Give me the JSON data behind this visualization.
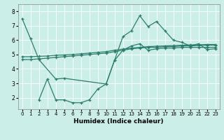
{
  "xlabel": "Humidex (Indice chaleur)",
  "background_color": "#cceee8",
  "line_color": "#2d7d6e",
  "xlim": [
    -0.5,
    23.5
  ],
  "ylim": [
    1.2,
    8.5
  ],
  "yticks": [
    2,
    3,
    4,
    5,
    6,
    7,
    8
  ],
  "xticks": [
    0,
    1,
    2,
    3,
    4,
    5,
    6,
    7,
    8,
    9,
    10,
    11,
    12,
    13,
    14,
    15,
    16,
    17,
    18,
    19,
    20,
    21,
    22,
    23
  ],
  "lines": [
    {
      "x": [
        0,
        1,
        2,
        4,
        5,
        10,
        11,
        12,
        13,
        14,
        15,
        16,
        17,
        18,
        19,
        20,
        21,
        22,
        23
      ],
      "y": [
        7.5,
        6.1,
        4.65,
        3.3,
        3.35,
        2.95,
        4.6,
        6.25,
        6.65,
        7.7,
        6.95,
        7.3,
        6.65,
        6.0,
        5.85,
        5.6,
        5.75,
        5.35,
        5.4
      ]
    },
    {
      "x": [
        0,
        1,
        2,
        3,
        4,
        5,
        6,
        7,
        8,
        9,
        10,
        11,
        12,
        13,
        14,
        15,
        16,
        17,
        18,
        19,
        20,
        21,
        22,
        23
      ],
      "y": [
        4.65,
        4.65,
        4.7,
        4.75,
        4.8,
        4.85,
        4.9,
        4.95,
        5.0,
        5.05,
        5.1,
        5.2,
        5.3,
        5.4,
        5.45,
        5.5,
        5.5,
        5.55,
        5.55,
        5.6,
        5.6,
        5.62,
        5.65,
        5.65
      ]
    },
    {
      "x": [
        0,
        1,
        2,
        3,
        4,
        5,
        6,
        7,
        8,
        9,
        10,
        11,
        12,
        13,
        14,
        15,
        16,
        17,
        18,
        19,
        20,
        21,
        22,
        23
      ],
      "y": [
        4.85,
        4.85,
        4.88,
        4.9,
        4.95,
        4.97,
        5.0,
        5.05,
        5.1,
        5.15,
        5.2,
        5.3,
        5.38,
        5.45,
        5.5,
        5.55,
        5.58,
        5.6,
        5.62,
        5.65,
        5.67,
        5.68,
        5.7,
        5.7
      ]
    },
    {
      "x": [
        2,
        3,
        4,
        5,
        6,
        7,
        8,
        9,
        10,
        11,
        12,
        13,
        14,
        15,
        16,
        17,
        18,
        19,
        20,
        21,
        22,
        23
      ],
      "y": [
        1.85,
        3.3,
        1.85,
        1.85,
        1.65,
        1.65,
        1.85,
        2.6,
        2.95,
        4.6,
        5.3,
        5.6,
        5.75,
        5.3,
        5.4,
        5.45,
        5.45,
        5.5,
        5.5,
        5.5,
        5.5,
        5.5
      ]
    }
  ]
}
